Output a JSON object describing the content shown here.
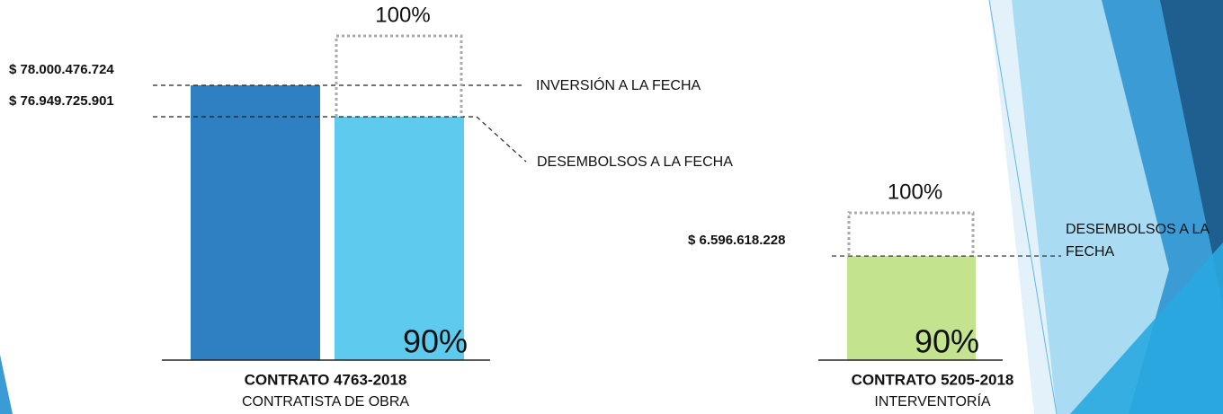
{
  "chart_data": [
    {
      "type": "bar",
      "categories": [
        "CONTRATO 4763-2018"
      ],
      "subtitle": "CONTRATISTA DE OBRA",
      "max_label": "100%",
      "progress_label": "90%",
      "ylim": [
        68813912412,
        79651656584
      ],
      "series": [
        {
          "name": "INVERSIÓN A  LA FECHA",
          "color": "#2e80c3",
          "values": [
            78000476724
          ],
          "value_labels": [
            "$ 78.000.476.724"
          ]
        },
        {
          "name": "DESEMBOLSOS  A LA FECHA",
          "color": "#5ecbee",
          "values": [
            76949725901
          ],
          "value_labels": [
            "$ 76.949.725.901"
          ]
        }
      ]
    },
    {
      "type": "bar",
      "categories": [
        "CONTRATO 5205-2018"
      ],
      "subtitle": "INTERVENTORÍA",
      "max_label": "100%",
      "progress_label": "90%",
      "ylim": [
        0,
        9330000000
      ],
      "series": [
        {
          "name": "DESEMBOLSOS A LA FECHA",
          "color": "#c3e38f",
          "values": [
            6596618228
          ],
          "value_labels": [
            "$ 6.596.618.228"
          ]
        }
      ]
    }
  ]
}
